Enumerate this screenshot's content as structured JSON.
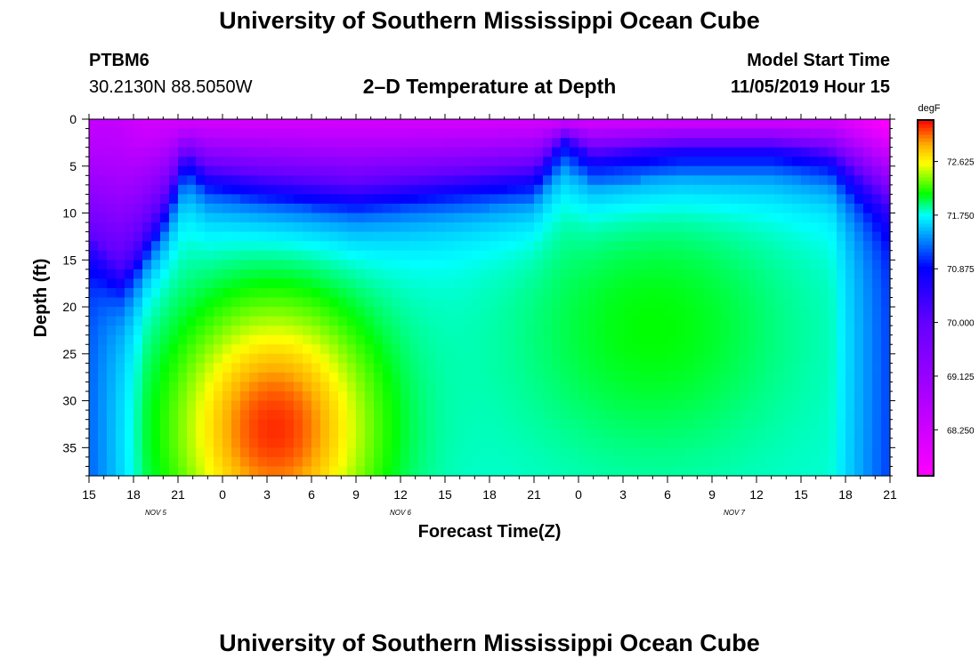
{
  "header": {
    "title": "University of Southern Mississippi Ocean Cube",
    "station_id": "PTBM6",
    "coords": "30.2130N 88.5050W",
    "model_start_label": "Model Start Time",
    "model_start_value": "11/05/2019 Hour 15"
  },
  "footer": {
    "title": "University of Southern Mississippi Ocean Cube"
  },
  "chart_data": {
    "type": "heatmap",
    "title": "2–D Temperature at Depth",
    "xlabel": "Forecast Time(Z)",
    "ylabel": "Depth (ft)",
    "x_ticks": [
      "15",
      "18",
      "21",
      "0",
      "3",
      "6",
      "9",
      "12",
      "15",
      "18",
      "21",
      "0",
      "3",
      "6",
      "9",
      "12",
      "15",
      "18",
      "21"
    ],
    "x_tick_hours": [
      0,
      3,
      6,
      9,
      12,
      15,
      18,
      21,
      24,
      27,
      30,
      33,
      36,
      39,
      42,
      45,
      48,
      51,
      54
    ],
    "x_range_hours": [
      0,
      54
    ],
    "date_labels": [
      {
        "text": "NOV  5",
        "hour": 4.5
      },
      {
        "text": "NOV  6",
        "hour": 21
      },
      {
        "text": "NOV  7",
        "hour": 43.5
      }
    ],
    "y_ticks": [
      "0",
      "5",
      "10",
      "15",
      "20",
      "25",
      "30",
      "35"
    ],
    "y_tick_values": [
      0,
      5,
      10,
      15,
      20,
      25,
      30,
      35
    ],
    "y_range": [
      0,
      38
    ],
    "y_inverted": true,
    "colorbar": {
      "unit": "degF",
      "tick_labels": [
        "72.625",
        "71.750",
        "70.875",
        "70.000",
        "69.125",
        "68.250"
      ],
      "tick_values": [
        72.625,
        71.75,
        70.875,
        70.0,
        69.125,
        68.25
      ],
      "range": [
        67.5,
        73.3
      ],
      "colors": [
        "#ff00ff",
        "#a000ff",
        "#6400ff",
        "#0000ff",
        "#00ffff",
        "#00ff00",
        "#ffff00",
        "#ffb000",
        "#ff0000"
      ],
      "color_stops": [
        67.5,
        69.0,
        70.0,
        70.9,
        71.75,
        72.1,
        72.6,
        72.9,
        73.3
      ]
    },
    "thermocline_depth_ft": [
      {
        "hour": 0,
        "depth": 12
      },
      {
        "hour": 2,
        "depth": 16
      },
      {
        "hour": 3,
        "depth": 15
      },
      {
        "hour": 5,
        "depth": 10
      },
      {
        "hour": 6.5,
        "depth": 4
      },
      {
        "hour": 8,
        "depth": 6
      },
      {
        "hour": 12,
        "depth": 7
      },
      {
        "hour": 18,
        "depth": 8
      },
      {
        "hour": 24,
        "depth": 7
      },
      {
        "hour": 30,
        "depth": 6
      },
      {
        "hour": 32,
        "depth": 2
      },
      {
        "hour": 34,
        "depth": 4
      },
      {
        "hour": 40,
        "depth": 3
      },
      {
        "hour": 46,
        "depth": 3
      },
      {
        "hour": 50,
        "depth": 4
      },
      {
        "hour": 54,
        "depth": 8
      }
    ],
    "warm_core": {
      "center_hour": 12.5,
      "center_depth": 33,
      "peak_temp": 73.2
    }
  }
}
